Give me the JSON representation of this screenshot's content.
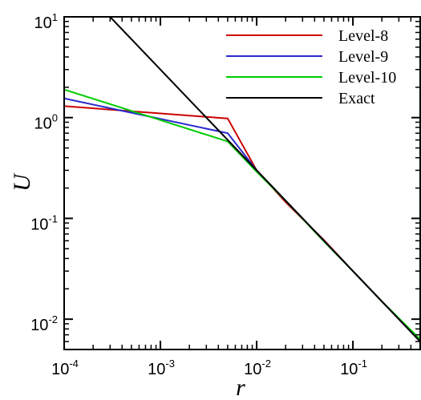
{
  "chart_data": {
    "type": "line",
    "xscale": "log",
    "yscale": "log",
    "xlim": [
      0.0001,
      0.5
    ],
    "ylim": [
      0.005,
      10
    ],
    "xlabel": "r",
    "ylabel": "U",
    "grid": false,
    "legend_position": "top-right",
    "x_ticks": [
      {
        "base": "10",
        "exp": "-4",
        "value": 0.0001
      },
      {
        "base": "10",
        "exp": "-3",
        "value": 0.001
      },
      {
        "base": "10",
        "exp": "-2",
        "value": 0.01
      },
      {
        "base": "10",
        "exp": "-1",
        "value": 0.1
      }
    ],
    "y_ticks": [
      {
        "base": "10",
        "exp": "-2",
        "value": 0.01
      },
      {
        "base": "10",
        "exp": "-1",
        "value": 0.1
      },
      {
        "base": "10",
        "exp": "0",
        "value": 1
      },
      {
        "base": "10",
        "exp": "1",
        "value": 10
      }
    ],
    "series": [
      {
        "name": "Level-8",
        "color": "#cc0000",
        "x": [
          0.0001,
          0.005,
          0.01,
          0.02,
          0.05,
          0.1,
          0.2,
          0.5
        ],
        "y": [
          1.3,
          0.98,
          0.3,
          0.145,
          0.061,
          0.03,
          0.015,
          0.006
        ]
      },
      {
        "name": "Level-9",
        "color": "#2a2acc",
        "x": [
          0.0001,
          0.005,
          0.01,
          0.02,
          0.05,
          0.1,
          0.2,
          0.5
        ],
        "y": [
          1.55,
          0.7,
          0.3,
          0.15,
          0.06,
          0.03,
          0.015,
          0.006
        ]
      },
      {
        "name": "Level-10",
        "color": "#00cc00",
        "x": [
          0.0001,
          0.005,
          0.01,
          0.02,
          0.05,
          0.1,
          0.2,
          0.5
        ],
        "y": [
          1.9,
          0.58,
          0.29,
          0.15,
          0.059,
          0.03,
          0.015,
          0.0063
        ]
      },
      {
        "name": "Exact",
        "color": "#000000",
        "x": [
          0.0003,
          0.5
        ],
        "y": [
          10,
          0.006
        ]
      }
    ]
  }
}
